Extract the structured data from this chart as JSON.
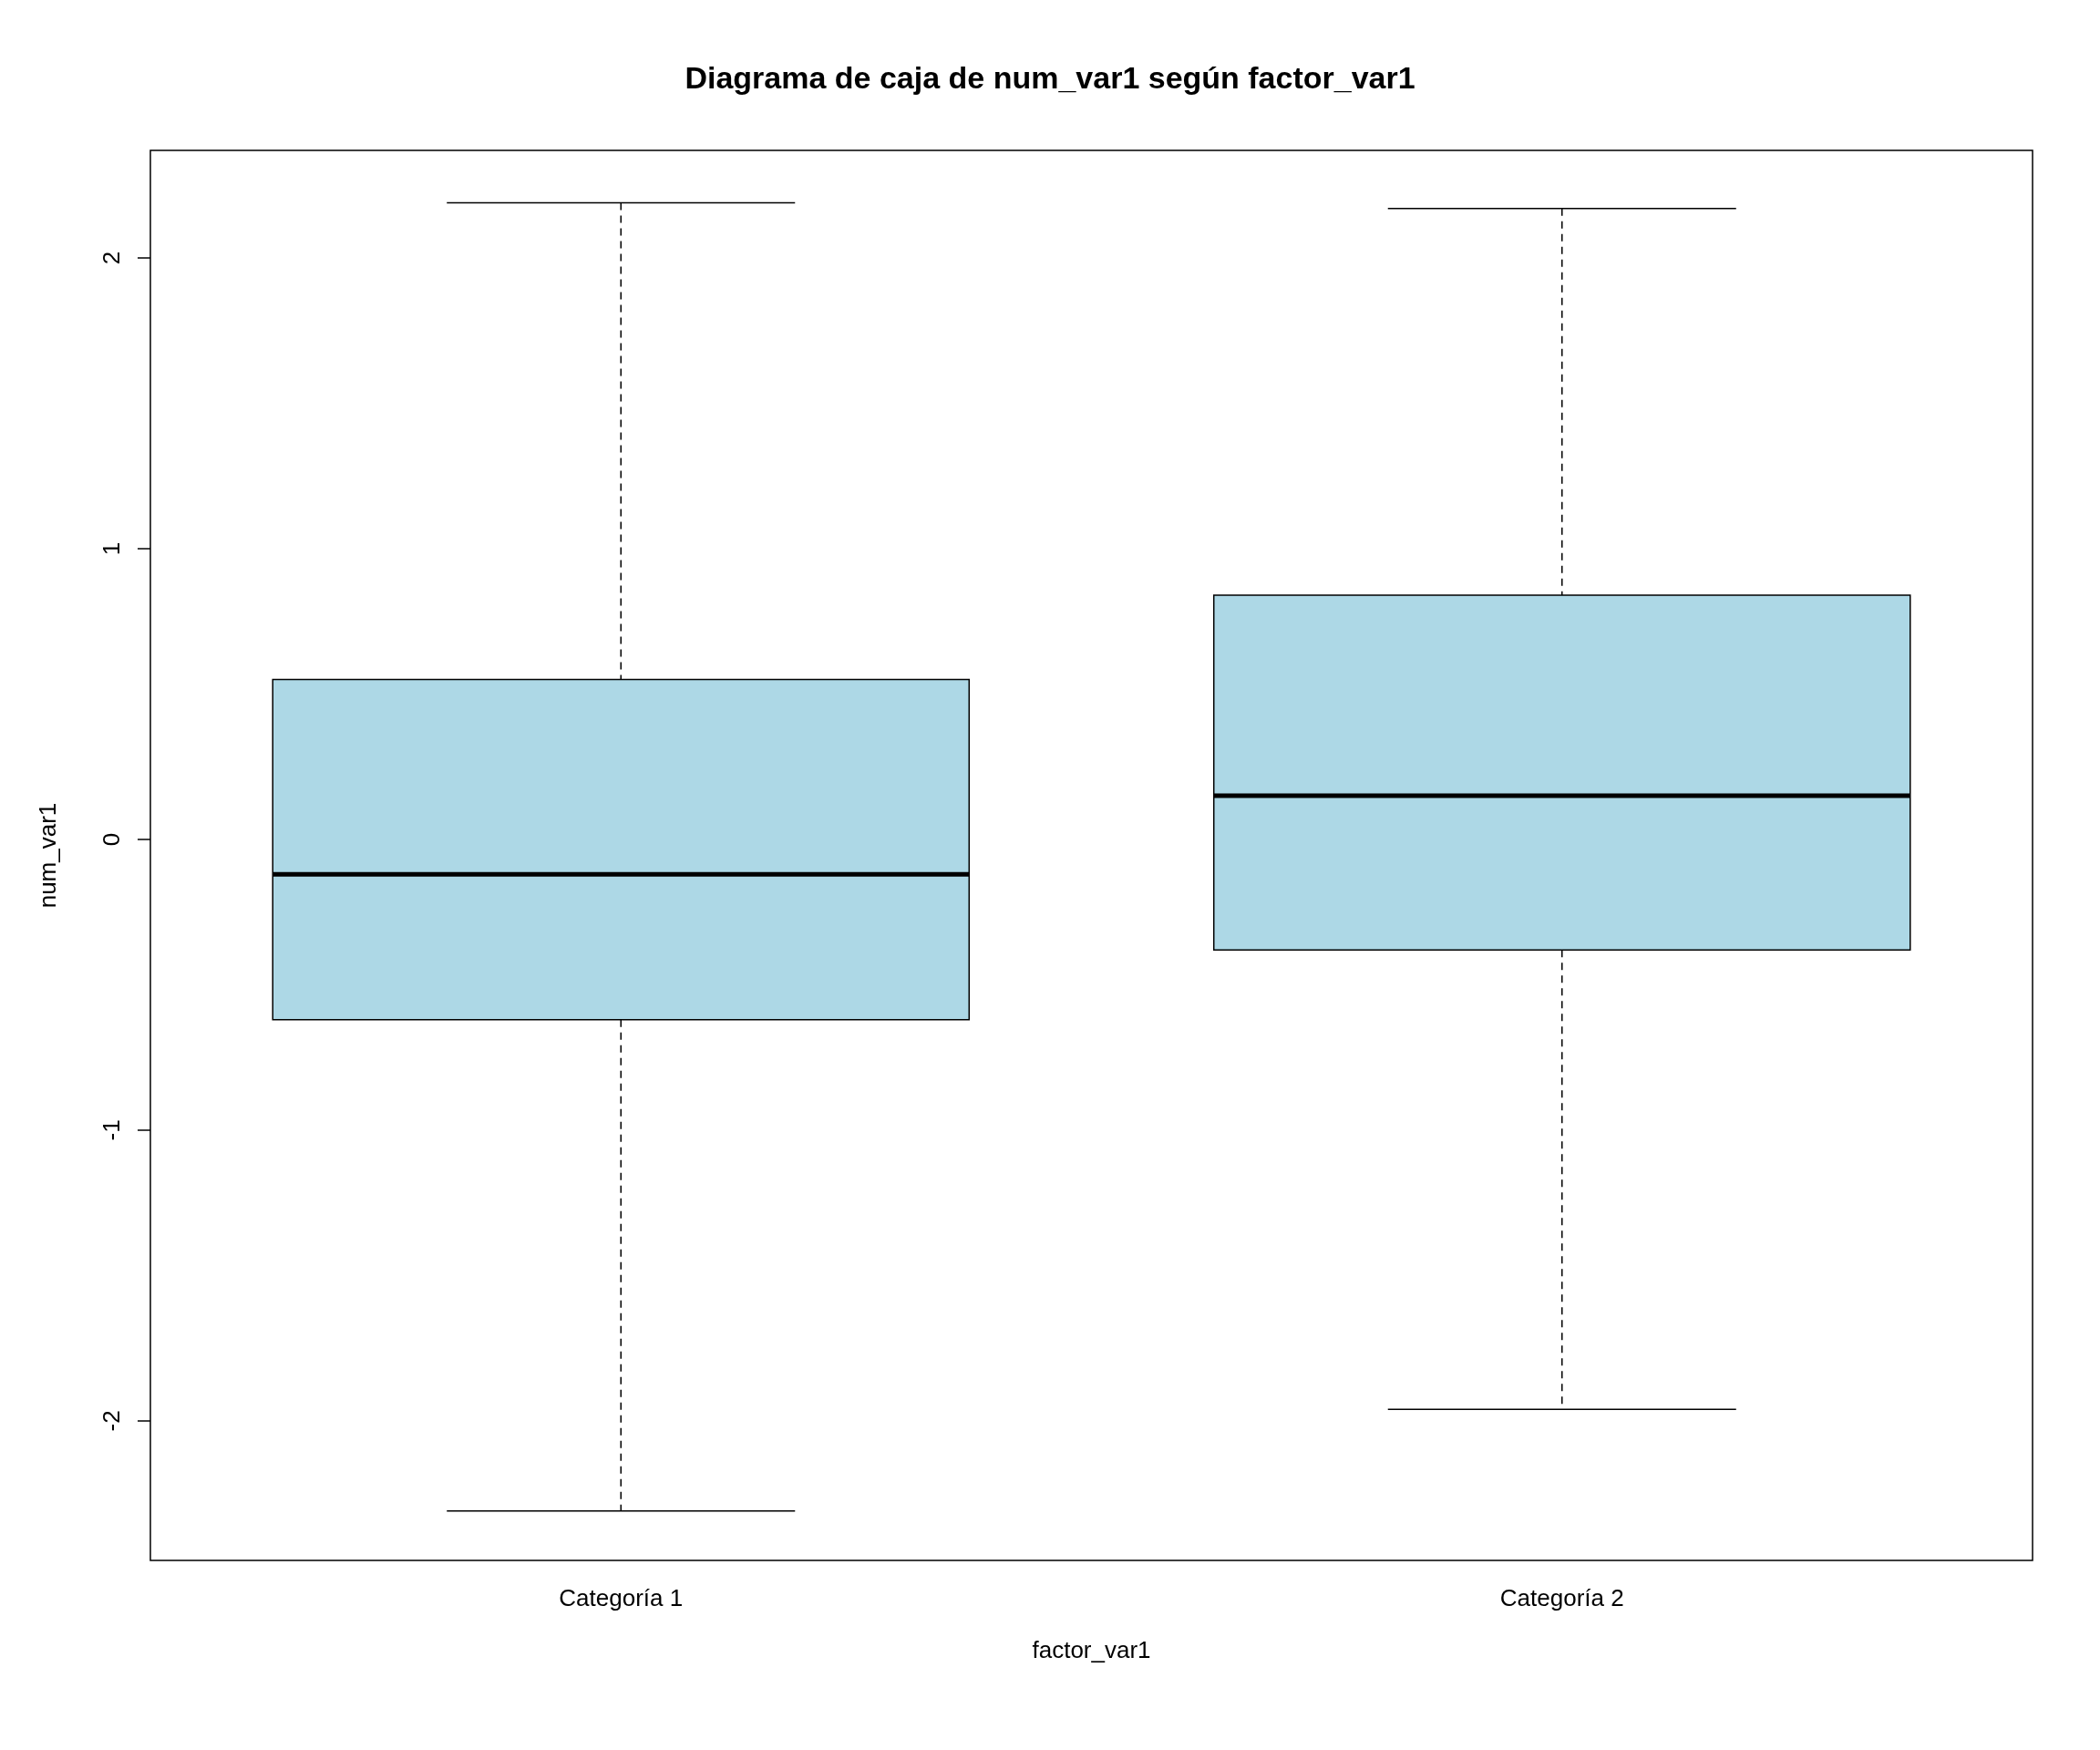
{
  "chart_data": {
    "type": "box",
    "title": "Diagrama de caja de num_var1 según factor_var1",
    "xlabel": "factor_var1",
    "ylabel": "num_var1",
    "categories": [
      "Categoría 1",
      "Categoría 2"
    ],
    "color": "#add8e6",
    "boxes": [
      {
        "low": -2.31,
        "q1": -0.62,
        "median": -0.12,
        "q3": 0.55,
        "high": 2.19
      },
      {
        "low": -1.96,
        "q1": -0.38,
        "median": 0.15,
        "q3": 0.84,
        "high": 2.17
      }
    ],
    "ylim": [
      -2.48,
      2.37
    ],
    "yticks": [
      -2,
      -1,
      0,
      1,
      2
    ],
    "grid": false
  }
}
